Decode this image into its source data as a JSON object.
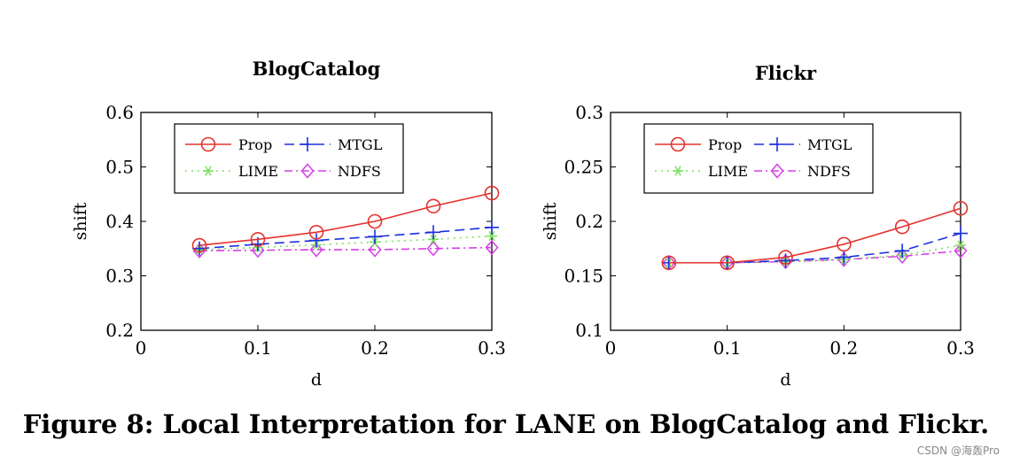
{
  "figure": {
    "caption": "Figure 8: Local Interpretation for LANE on BlogCatalog and Flickr.",
    "watermark": "CSDN @海轰Pro"
  },
  "colors": {
    "Prop": "#e5322d",
    "MTGL": "#1b2fe0",
    "LIME": "#7be05a",
    "NDFS": "#d63ee6"
  },
  "chart_data": [
    {
      "type": "line",
      "title": "BlogCatalog",
      "xlabel": "d",
      "ylabel": "shift",
      "xlim": [
        0,
        0.3
      ],
      "ylim": [
        0.2,
        0.6
      ],
      "xticks": [
        0,
        0.1,
        0.2,
        0.3
      ],
      "xtick_labels": [
        "0",
        "0.1",
        "0.2",
        "0.3"
      ],
      "yticks": [
        0.2,
        0.3,
        0.4,
        0.5,
        0.6
      ],
      "ytick_labels": [
        "0.2",
        "0.3",
        "0.4",
        "0.5",
        "0.6"
      ],
      "grid": false,
      "legend": {
        "placement": "top-left",
        "columns": 2,
        "order": [
          "Prop",
          "MTGL",
          "LIME",
          "NDFS"
        ]
      },
      "x": [
        0.05,
        0.1,
        0.15,
        0.2,
        0.25,
        0.3
      ],
      "series": [
        {
          "name": "Prop",
          "marker": "circle",
          "dash": "solid",
          "values": [
            0.356,
            0.367,
            0.38,
            0.4,
            0.428,
            0.452
          ]
        },
        {
          "name": "MTGL",
          "marker": "plus",
          "dash": "dashed",
          "values": [
            0.35,
            0.358,
            0.365,
            0.372,
            0.38,
            0.389
          ]
        },
        {
          "name": "LIME",
          "marker": "asterisk",
          "dash": "dotted",
          "values": [
            0.348,
            0.352,
            0.357,
            0.362,
            0.367,
            0.373
          ]
        },
        {
          "name": "NDFS",
          "marker": "diamond",
          "dash": "dashdot",
          "values": [
            0.346,
            0.347,
            0.348,
            0.348,
            0.35,
            0.352
          ]
        }
      ]
    },
    {
      "type": "line",
      "title": "Flickr",
      "xlabel": "d",
      "ylabel": "shift",
      "xlim": [
        0,
        0.3
      ],
      "ylim": [
        0.1,
        0.3
      ],
      "xticks": [
        0,
        0.1,
        0.2,
        0.3
      ],
      "xtick_labels": [
        "0",
        "0.1",
        "0.2",
        "0.3"
      ],
      "yticks": [
        0.1,
        0.15,
        0.2,
        0.25,
        0.3
      ],
      "ytick_labels": [
        "0.1",
        "0.15",
        "0.2",
        "0.25",
        "0.3"
      ],
      "grid": false,
      "legend": {
        "placement": "top-left",
        "columns": 2,
        "order": [
          "Prop",
          "MTGL",
          "LIME",
          "NDFS"
        ]
      },
      "x": [
        0.05,
        0.1,
        0.15,
        0.2,
        0.25,
        0.3
      ],
      "series": [
        {
          "name": "Prop",
          "marker": "circle",
          "dash": "solid",
          "values": [
            0.162,
            0.162,
            0.167,
            0.179,
            0.195,
            0.212
          ]
        },
        {
          "name": "MTGL",
          "marker": "plus",
          "dash": "dashed",
          "values": [
            0.162,
            0.162,
            0.164,
            0.167,
            0.173,
            0.189
          ]
        },
        {
          "name": "LIME",
          "marker": "asterisk",
          "dash": "dotted",
          "values": [
            0.162,
            0.162,
            0.163,
            0.165,
            0.169,
            0.178
          ]
        },
        {
          "name": "NDFS",
          "marker": "diamond",
          "dash": "dashdot",
          "values": [
            0.162,
            0.162,
            0.163,
            0.165,
            0.168,
            0.173
          ]
        }
      ]
    }
  ]
}
